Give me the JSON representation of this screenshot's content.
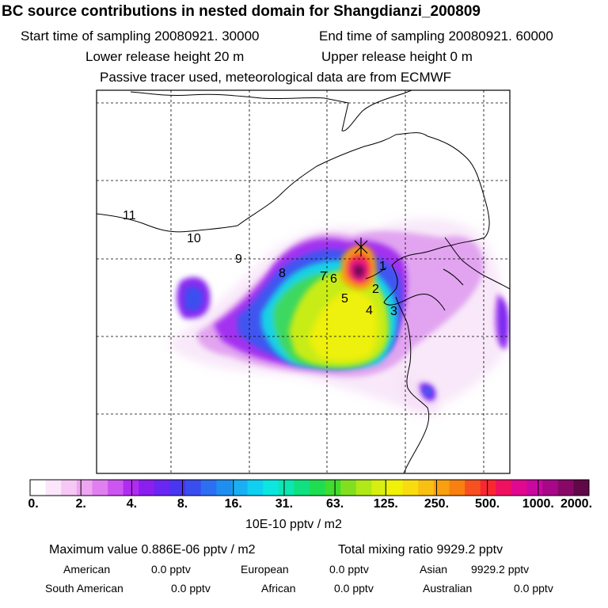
{
  "header": {
    "title": "BC  source contributions in nested domain for Shangdianzi_200809",
    "start_sampling": "Start time of sampling 20080921. 30000",
    "end_sampling": "End time of sampling 20080921. 60000",
    "lower_release": "Lower release height   20 m",
    "upper_release": "Upper release height    0 m",
    "tracer_note": "Passive tracer used, meteorological data are from ECMWF"
  },
  "map": {
    "region_labels": [
      "1",
      "2",
      "3",
      "4",
      "5",
      "6",
      "7",
      "8",
      "9",
      "10",
      "11"
    ],
    "receptor_marker": "×"
  },
  "colorbar": {
    "tick_labels": [
      "0.",
      "2.",
      "4.",
      "8.",
      "16.",
      "31.",
      "63.",
      "125.",
      "250.",
      "500.",
      "1000.",
      "2000."
    ],
    "unit_label": "10E-10 pptv / m2",
    "colors": [
      "#ffffff",
      "#fbe6fb",
      "#f5c8f5",
      "#eea6f0",
      "#e27ff0",
      "#cd55f2",
      "#b02cf0",
      "#8a1ff0",
      "#6a26f2",
      "#4a35f0",
      "#3a4ef0",
      "#2d6ff2",
      "#1e8ff0",
      "#1aaff2",
      "#10cff0",
      "#0ce6e0",
      "#0ce6b0",
      "#10e080",
      "#20dc50",
      "#40dc30",
      "#80e020",
      "#b0e818",
      "#d8ee10",
      "#f0f008",
      "#f8dc10",
      "#f8c010",
      "#f8a010",
      "#f88010",
      "#f85020",
      "#f82830",
      "#f01060",
      "#e00890",
      "#c808a0",
      "#a80888",
      "#880868",
      "#600848"
    ]
  },
  "summary": {
    "max_label": "Maximum value  0.886E-06 pptv / m2",
    "total_label": "Total mixing ratio      9929.2 pptv",
    "american_label": "American",
    "american_value": "0.0 pptv",
    "european_label": "European",
    "european_value": "0.0 pptv",
    "asian_label": "Asian",
    "asian_value": "9929.2 pptv",
    "south_american_label": "South American",
    "south_american_value": "0.0 pptv",
    "african_label": "African",
    "african_value": "0.0 pptv",
    "australian_label": "Australian",
    "australian_value": "0.0 pptv"
  }
}
